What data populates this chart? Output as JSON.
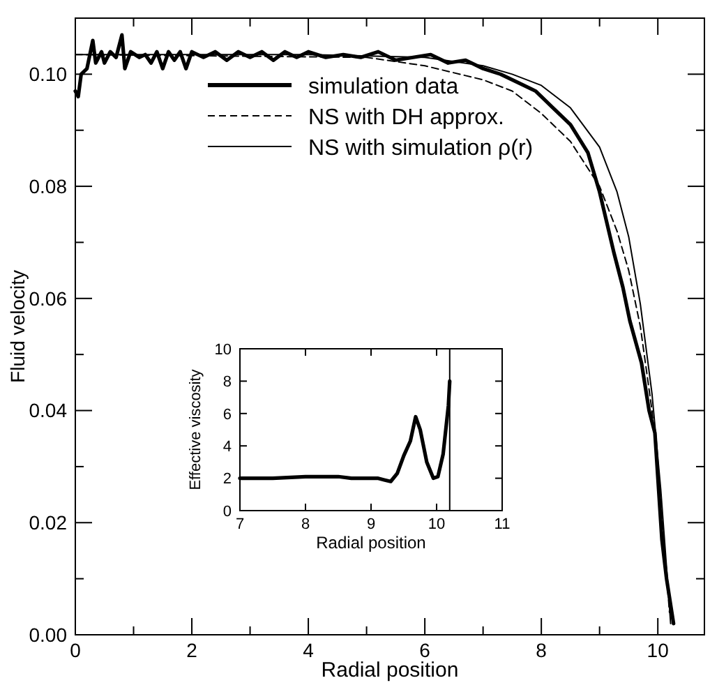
{
  "chart_data": [
    {
      "type": "line",
      "xlabel": "Radial position",
      "ylabel": "Fluid velocity",
      "xlim": [
        0,
        10.8
      ],
      "ylim": [
        0,
        0.11
      ],
      "xticks": [
        0,
        {
          "value": 1,
          "label": null
        },
        2,
        {
          "value": 3,
          "label": null
        },
        4,
        {
          "value": 5,
          "label": null
        },
        6,
        {
          "value": 7,
          "label": null
        },
        8,
        {
          "value": 9,
          "label": null
        },
        10
      ],
      "yticks": [
        {
          "value": 0,
          "label": "0.00"
        },
        {
          "value": 0.01,
          "label": null
        },
        {
          "value": 0.02,
          "label": "0.02"
        },
        {
          "value": 0.03,
          "label": null
        },
        {
          "value": 0.04,
          "label": "0.04"
        },
        {
          "value": 0.05,
          "label": null
        },
        {
          "value": 0.06,
          "label": "0.06"
        },
        {
          "value": 0.07,
          "label": null
        },
        {
          "value": 0.08,
          "label": "0.08"
        },
        {
          "value": 0.09,
          "label": null
        },
        {
          "value": 0.1,
          "label": "0.10"
        }
      ],
      "legend": "top left",
      "series": [
        {
          "name": "simulation data",
          "color": "#000000",
          "line_style": "solid",
          "x": [
            0,
            0.05,
            0.1,
            0.2,
            0.3,
            0.35,
            0.45,
            0.5,
            0.6,
            0.7,
            0.8,
            0.85,
            0.95,
            1.1,
            1.2,
            1.3,
            1.4,
            1.5,
            1.6,
            1.7,
            1.8,
            1.9,
            2.0,
            2.2,
            2.4,
            2.6,
            2.8,
            3.0,
            3.2,
            3.4,
            3.6,
            3.8,
            4.0,
            4.3,
            4.6,
            4.9,
            5.2,
            5.5,
            5.8,
            6.1,
            6.4,
            6.7,
            7.0,
            7.3,
            7.6,
            7.9,
            8.2,
            8.5,
            8.8,
            9.0,
            9.25,
            9.4,
            9.52,
            9.72,
            9.85,
            9.95,
            10.07,
            10.15,
            10.27
          ],
          "values": [
            0.097,
            0.096,
            0.1,
            0.101,
            0.106,
            0.102,
            0.104,
            0.102,
            0.104,
            0.103,
            0.107,
            0.101,
            0.104,
            0.103,
            0.1035,
            0.102,
            0.104,
            0.101,
            0.104,
            0.1025,
            0.104,
            0.101,
            0.104,
            0.103,
            0.104,
            0.1025,
            0.104,
            0.103,
            0.104,
            0.1025,
            0.104,
            0.103,
            0.104,
            0.103,
            0.1035,
            0.103,
            0.104,
            0.1025,
            0.103,
            0.1035,
            0.102,
            0.1025,
            0.101,
            0.1,
            0.0985,
            0.097,
            0.094,
            0.091,
            0.086,
            0.079,
            0.068,
            0.062,
            0.056,
            0.0485,
            0.04,
            0.036,
            0.017,
            0.01,
            0.002
          ]
        },
        {
          "name": "NS with DH approx.",
          "color": "#000000",
          "line_style": "dashed",
          "x": [
            0,
            5,
            6,
            7,
            7.5,
            8,
            8.5,
            9,
            9.3,
            9.5,
            9.7,
            9.9,
            10.05,
            10.2
          ],
          "values": [
            0.1035,
            0.103,
            0.1015,
            0.099,
            0.097,
            0.093,
            0.088,
            0.08,
            0.072,
            0.065,
            0.055,
            0.04,
            0.024,
            0.004
          ]
        },
        {
          "name": "NS with simulation ρ(r)",
          "color": "#000000",
          "line_style": "solid",
          "x": [
            0,
            4,
            6,
            7,
            7.5,
            8,
            8.5,
            9,
            9.3,
            9.5,
            9.7,
            9.9,
            10.05,
            10.15,
            10.22
          ],
          "values": [
            0.1035,
            0.1035,
            0.103,
            0.1015,
            0.1,
            0.098,
            0.094,
            0.087,
            0.079,
            0.071,
            0.059,
            0.043,
            0.026,
            0.012,
            0.002
          ]
        }
      ]
    },
    {
      "type": "line",
      "xlabel": "Radial position",
      "ylabel": "Effective viscosity",
      "xlim": [
        7,
        11
      ],
      "ylim": [
        0,
        10
      ],
      "xticks": [
        7,
        8,
        9,
        10,
        11
      ],
      "yticks": [
        0,
        2,
        4,
        6,
        8,
        10
      ],
      "legend": false,
      "ref_lines": [
        {
          "axis": "x",
          "value": 10.2,
          "color": "#000000"
        }
      ],
      "series": [
        {
          "color": "#000000",
          "line_style": "solid",
          "x": [
            7,
            7.5,
            8,
            8.2,
            8.5,
            8.7,
            9.1,
            9.2,
            9.3,
            9.4,
            9.5,
            9.6,
            9.68,
            9.75,
            9.85,
            9.95,
            10.02,
            10.1,
            10.18,
            10.2
          ],
          "values": [
            2,
            2,
            2.1,
            2.1,
            2.1,
            2,
            2,
            1.9,
            1.8,
            2.3,
            3.4,
            4.3,
            5.8,
            5,
            3,
            2,
            2.1,
            3.5,
            6.5,
            8
          ]
        }
      ]
    }
  ]
}
